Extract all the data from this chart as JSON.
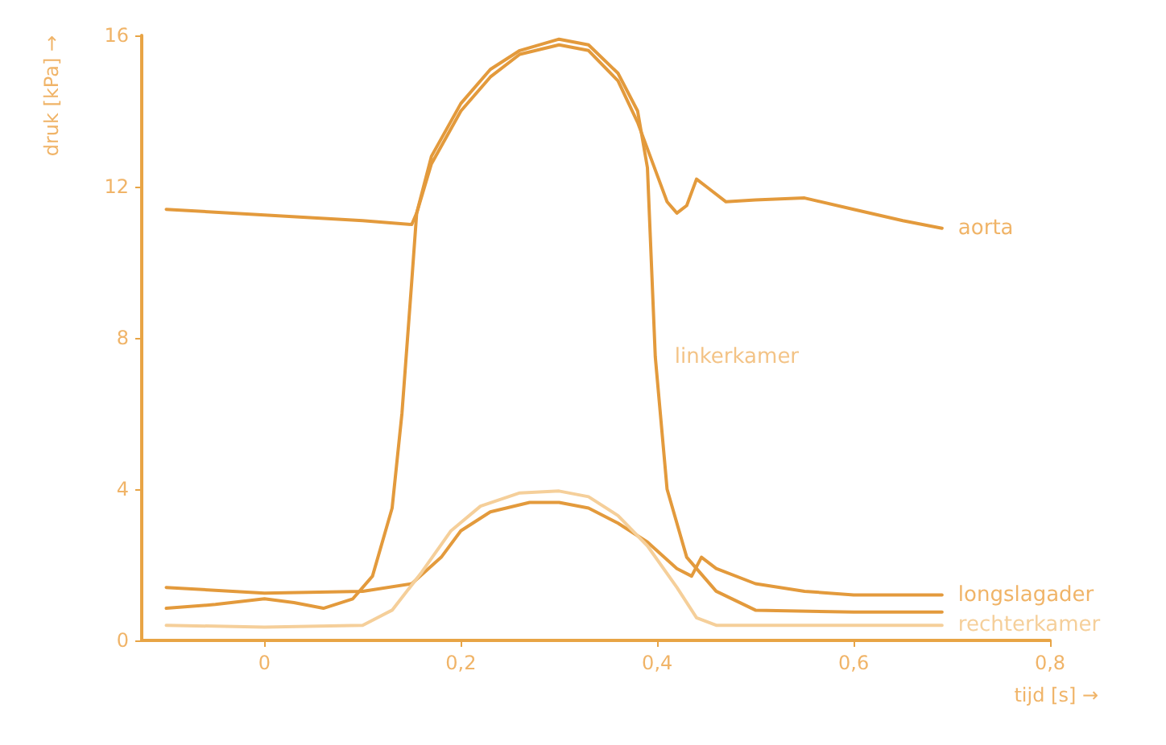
{
  "chart_data": {
    "type": "line",
    "xlabel": "tijd [s] →",
    "ylabel": "druk [kPa] →",
    "xlim": [
      -0.125,
      0.8
    ],
    "xticks": [
      {
        "value": 0,
        "label": "0"
      },
      {
        "value": 0.2,
        "label": "0,2"
      },
      {
        "value": 0.4,
        "label": "0,4"
      },
      {
        "value": 0.6,
        "label": "0,6"
      },
      {
        "value": 0.8,
        "label": "0,8"
      }
    ],
    "ylim": [
      0,
      16
    ],
    "yticks": [
      0,
      4,
      8,
      12,
      16
    ],
    "grid": false,
    "legend": false,
    "marker": "none",
    "line_style": "solid",
    "annotations": [
      {
        "text": "linkerkamer",
        "x": 0.398,
        "y": 7.5
      }
    ],
    "series": [
      {
        "name": "aorta",
        "color": "#e39a3c",
        "x": [
          -0.1,
          0,
          0.1,
          0.15,
          0.155,
          0.17,
          0.2,
          0.23,
          0.26,
          0.3,
          0.33,
          0.36,
          0.38,
          0.4,
          0.41,
          0.42,
          0.43,
          0.44,
          0.45,
          0.47,
          0.5,
          0.55,
          0.6,
          0.65,
          0.69
        ],
        "values": [
          11.4,
          11.25,
          11.1,
          11.0,
          11.3,
          12.6,
          14.0,
          14.9,
          15.5,
          15.75,
          15.6,
          14.8,
          13.7,
          12.3,
          11.6,
          11.3,
          11.5,
          12.2,
          12.0,
          11.6,
          11.65,
          11.7,
          11.4,
          11.1,
          10.9
        ]
      },
      {
        "color": "#e39a3c",
        "x": [
          -0.1,
          -0.05,
          0,
          0.03,
          0.06,
          0.09,
          0.11,
          0.13,
          0.14,
          0.15,
          0.155,
          0.17,
          0.2,
          0.23,
          0.26,
          0.3,
          0.33,
          0.36,
          0.38,
          0.39,
          0.398,
          0.41,
          0.43,
          0.46,
          0.5,
          0.6,
          0.69
        ],
        "values": [
          0.85,
          0.95,
          1.1,
          1.0,
          0.85,
          1.1,
          1.7,
          3.5,
          6.0,
          9.5,
          11.3,
          12.8,
          14.2,
          15.1,
          15.6,
          15.9,
          15.75,
          15.0,
          14.0,
          12.5,
          7.5,
          4.0,
          2.2,
          1.3,
          0.8,
          0.75,
          0.75
        ]
      },
      {
        "name": "longslagader",
        "color": "#e39a3c",
        "x": [
          -0.1,
          0,
          0.1,
          0.15,
          0.18,
          0.2,
          0.23,
          0.27,
          0.3,
          0.33,
          0.36,
          0.39,
          0.42,
          0.435,
          0.445,
          0.46,
          0.5,
          0.55,
          0.6,
          0.69
        ],
        "values": [
          1.4,
          1.25,
          1.3,
          1.5,
          2.2,
          2.9,
          3.4,
          3.65,
          3.65,
          3.5,
          3.1,
          2.6,
          1.9,
          1.7,
          2.2,
          1.9,
          1.5,
          1.3,
          1.2,
          1.2
        ]
      },
      {
        "name": "rechterkamer",
        "color": "#f5cf9a",
        "x": [
          -0.1,
          0,
          0.1,
          0.13,
          0.16,
          0.19,
          0.22,
          0.26,
          0.3,
          0.33,
          0.36,
          0.39,
          0.42,
          0.44,
          0.46,
          0.69
        ],
        "values": [
          0.4,
          0.35,
          0.4,
          0.8,
          1.8,
          2.9,
          3.55,
          3.9,
          3.95,
          3.8,
          3.3,
          2.5,
          1.4,
          0.6,
          0.4,
          0.4
        ]
      }
    ]
  }
}
